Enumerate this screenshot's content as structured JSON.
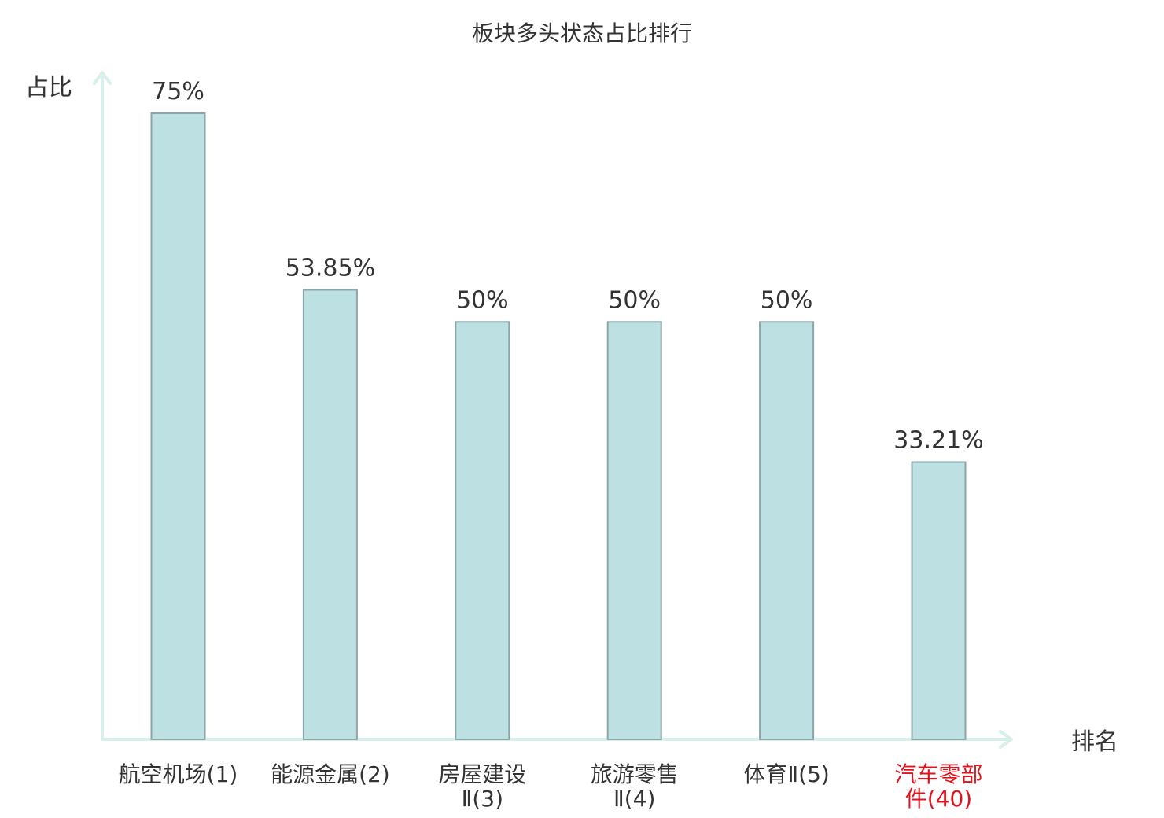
{
  "chart_data": {
    "type": "bar",
    "title": "板块多头状态占比排行",
    "ylabel": "占比",
    "xlabel": "排名",
    "categories": [
      [
        "航空机场(1)"
      ],
      [
        "能源金属(2)"
      ],
      [
        "房屋建设",
        "Ⅱ(3)"
      ],
      [
        "旅游零售",
        "Ⅱ(4)"
      ],
      [
        "体育Ⅱ(5)"
      ],
      [
        "汽车零部",
        "件(40)"
      ]
    ],
    "values": [
      75,
      53.85,
      50,
      50,
      50,
      33.21
    ],
    "value_labels": [
      "75%",
      "53.85%",
      "50%",
      "50%",
      "50%",
      "33.21%"
    ],
    "highlight_index": 5,
    "ylim": [
      0,
      75
    ],
    "grid": false,
    "colors": {
      "bar_fill": "#bde0e3",
      "bar_stroke": "#8ca6a8",
      "axis": "#d9efec",
      "text": "#333333",
      "highlight_text": "#e0141e"
    }
  }
}
